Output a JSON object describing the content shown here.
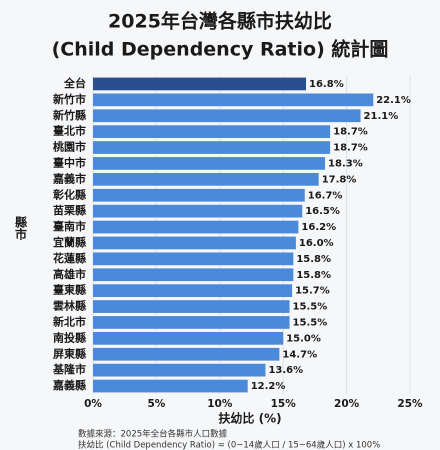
{
  "chart_data": {
    "type": "barh",
    "title": [
      "2025年台灣各縣市扶幼比",
      "(Child Dependency Ratio) 統計圖"
    ],
    "xlabel": "扶幼比 (%)",
    "ylabel": "縣市",
    "categories": [
      "全台",
      "新竹市",
      "新竹縣",
      "臺北市",
      "桃園市",
      "臺中市",
      "嘉義市",
      "彰化縣",
      "苗栗縣",
      "臺南市",
      "宜蘭縣",
      "花蓮縣",
      "高雄市",
      "臺東縣",
      "雲林縣",
      "新北市",
      "南投縣",
      "屏東縣",
      "基隆市",
      "嘉義縣"
    ],
    "values": [
      16.8,
      22.1,
      21.1,
      18.7,
      18.7,
      18.3,
      17.8,
      16.7,
      16.5,
      16.2,
      16.0,
      15.8,
      15.8,
      15.7,
      15.5,
      15.5,
      15.0,
      14.7,
      13.6,
      12.2
    ],
    "value_labels": [
      "16.8%",
      "22.1%",
      "21.1%",
      "18.7%",
      "18.7%",
      "18.3%",
      "17.8%",
      "16.7%",
      "16.5%",
      "16.2%",
      "16.0%",
      "15.8%",
      "15.8%",
      "15.7%",
      "15.5%",
      "15.5%",
      "15.0%",
      "14.7%",
      "13.6%",
      "12.2%"
    ],
    "colors": [
      "#2b4f8e",
      "#4a8ad8",
      "#4a8ad8",
      "#4a8ad8",
      "#4a8ad8",
      "#4a8ad8",
      "#4a8ad8",
      "#4a8ad8",
      "#4a8ad8",
      "#4a8ad8",
      "#4a8ad8",
      "#4a8ad8",
      "#4a8ad8",
      "#4a8ad8",
      "#4a8ad8",
      "#4a8ad8",
      "#4a8ad8",
      "#4a8ad8",
      "#4a8ad8",
      "#4a8ad8"
    ],
    "xlim": [
      0,
      25
    ],
    "xticks": [
      {
        "value": 0,
        "label": "0%"
      },
      {
        "value": 5,
        "label": "5%"
      },
      {
        "value": 10,
        "label": "10%"
      },
      {
        "value": 15,
        "label": "15%"
      },
      {
        "value": 20,
        "label": "20%"
      },
      {
        "value": 25,
        "label": "25%"
      }
    ],
    "grid": true,
    "notes": [
      "數據來源：2025年全台各縣市人口數據",
      "扶幼比 (Child Dependency Ratio) = (0~14歲人口 / 15~64歲人口) x 100%"
    ]
  }
}
